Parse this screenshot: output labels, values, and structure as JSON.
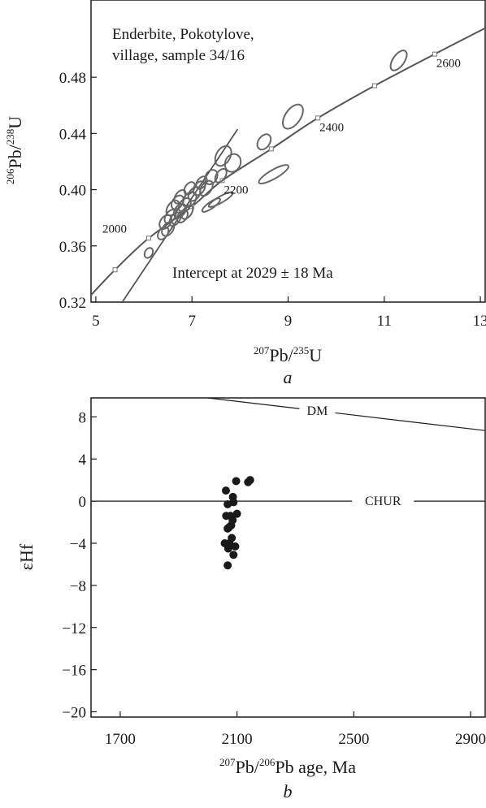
{
  "chart_data": [
    {
      "type": "scatter",
      "panel_label": "a",
      "annotation_lines": [
        "Enderbite, Pokotylove,",
        "village, sample 34/16"
      ],
      "intercept_text": "Intercept at 2029 ± 18 Ma",
      "xlabel": {
        "sup": "207",
        "base": "Pb/",
        "sup2": "235",
        "base2": "U"
      },
      "ylabel": {
        "sup": "206",
        "base": "Pb/",
        "sup2": "238",
        "base2": "U"
      },
      "xlim": [
        4.9,
        13.1
      ],
      "ylim": [
        0.32,
        0.535
      ],
      "xticks": [
        5,
        7,
        9,
        11,
        13
      ],
      "xtick_labels": [
        "5",
        "7",
        "9",
        "11",
        "13"
      ],
      "yticks": [
        0.32,
        0.36,
        0.4,
        0.44,
        0.48
      ],
      "ytick_labels": [
        "0.32",
        "0.36",
        "0.40",
        "0.44",
        "0.48"
      ],
      "concordia_age_labels": [
        {
          "age": "2000",
          "x": 6.1,
          "y": 0.3655
        },
        {
          "age": "2200",
          "x": 7.63,
          "y": 0.4065
        },
        {
          "age": "2400",
          "x": 9.62,
          "y": 0.451
        },
        {
          "age": "2600",
          "x": 12.05,
          "y": 0.4965
        }
      ],
      "concordia_markers": [
        {
          "x": 5.4,
          "y": 0.343
        },
        {
          "x": 6.1,
          "y": 0.3655
        },
        {
          "x": 7.0,
          "y": 0.388
        },
        {
          "x": 7.63,
          "y": 0.4065
        },
        {
          "x": 8.65,
          "y": 0.429
        },
        {
          "x": 9.62,
          "y": 0.451
        },
        {
          "x": 10.8,
          "y": 0.474
        },
        {
          "x": 12.05,
          "y": 0.4965
        }
      ],
      "concordia_curve": [
        {
          "x": 4.9,
          "y": 0.325
        },
        {
          "x": 5.4,
          "y": 0.343
        },
        {
          "x": 6.1,
          "y": 0.3655
        },
        {
          "x": 7.0,
          "y": 0.388
        },
        {
          "x": 7.63,
          "y": 0.4065
        },
        {
          "x": 8.65,
          "y": 0.429
        },
        {
          "x": 9.62,
          "y": 0.451
        },
        {
          "x": 10.8,
          "y": 0.474
        },
        {
          "x": 12.05,
          "y": 0.4965
        },
        {
          "x": 13.1,
          "y": 0.515
        }
      ],
      "discordia_line": [
        {
          "x": 5.55,
          "y": 0.32
        },
        {
          "x": 7.95,
          "y": 0.443
        }
      ],
      "ellipses": [
        {
          "x": 11.3,
          "y": 0.492,
          "rx": 0.15,
          "ry": 0.0045,
          "angle": -55
        },
        {
          "x": 9.1,
          "y": 0.452,
          "rx": 0.18,
          "ry": 0.006,
          "angle": -55
        },
        {
          "x": 8.5,
          "y": 0.434,
          "rx": 0.11,
          "ry": 0.0045,
          "angle": -55
        },
        {
          "x": 8.7,
          "y": 0.411,
          "rx": 0.22,
          "ry": 0.0035,
          "angle": -30
        },
        {
          "x": 7.65,
          "y": 0.424,
          "rx": 0.14,
          "ry": 0.0055,
          "angle": -60
        },
        {
          "x": 7.85,
          "y": 0.419,
          "rx": 0.12,
          "ry": 0.006,
          "angle": -65
        },
        {
          "x": 7.6,
          "y": 0.41,
          "rx": 0.1,
          "ry": 0.0035,
          "angle": -55
        },
        {
          "x": 7.4,
          "y": 0.409,
          "rx": 0.1,
          "ry": 0.0045,
          "angle": -60
        },
        {
          "x": 7.3,
          "y": 0.401,
          "rx": 0.11,
          "ry": 0.004,
          "angle": -55
        },
        {
          "x": 7.6,
          "y": 0.393,
          "rx": 0.18,
          "ry": 0.0025,
          "angle": -30
        },
        {
          "x": 7.4,
          "y": 0.389,
          "rx": 0.14,
          "ry": 0.0025,
          "angle": -35
        },
        {
          "x": 7.15,
          "y": 0.401,
          "rx": 0.1,
          "ry": 0.004,
          "angle": -55
        },
        {
          "x": 7.05,
          "y": 0.397,
          "rx": 0.1,
          "ry": 0.004,
          "angle": -55
        },
        {
          "x": 6.95,
          "y": 0.393,
          "rx": 0.11,
          "ry": 0.0045,
          "angle": -55
        },
        {
          "x": 6.85,
          "y": 0.389,
          "rx": 0.1,
          "ry": 0.004,
          "angle": -55
        },
        {
          "x": 6.75,
          "y": 0.385,
          "rx": 0.1,
          "ry": 0.004,
          "angle": -55
        },
        {
          "x": 6.7,
          "y": 0.391,
          "rx": 0.1,
          "ry": 0.004,
          "angle": -55
        },
        {
          "x": 6.6,
          "y": 0.387,
          "rx": 0.11,
          "ry": 0.004,
          "angle": -55
        },
        {
          "x": 6.55,
          "y": 0.381,
          "rx": 0.1,
          "ry": 0.0035,
          "angle": -55
        },
        {
          "x": 6.45,
          "y": 0.377,
          "rx": 0.1,
          "ry": 0.004,
          "angle": -55
        },
        {
          "x": 6.65,
          "y": 0.379,
          "rx": 0.1,
          "ry": 0.0035,
          "angle": -55
        },
        {
          "x": 6.8,
          "y": 0.381,
          "rx": 0.09,
          "ry": 0.0035,
          "angle": -55
        },
        {
          "x": 6.9,
          "y": 0.384,
          "rx": 0.1,
          "ry": 0.0035,
          "angle": -55
        },
        {
          "x": 6.5,
          "y": 0.372,
          "rx": 0.1,
          "ry": 0.004,
          "angle": -55
        },
        {
          "x": 6.4,
          "y": 0.369,
          "rx": 0.09,
          "ry": 0.0035,
          "angle": -55
        },
        {
          "x": 6.1,
          "y": 0.355,
          "rx": 0.07,
          "ry": 0.003,
          "angle": -60
        },
        {
          "x": 6.75,
          "y": 0.395,
          "rx": 0.1,
          "ry": 0.0035,
          "angle": -55
        },
        {
          "x": 6.95,
          "y": 0.401,
          "rx": 0.09,
          "ry": 0.0035,
          "angle": -55
        },
        {
          "x": 7.2,
          "y": 0.405,
          "rx": 0.09,
          "ry": 0.0035,
          "angle": -55
        }
      ]
    },
    {
      "type": "scatter",
      "panel_label": "b",
      "xlabel": {
        "sup": "207",
        "base": "Pb/",
        "sup2": "206",
        "base2": "Pb age, Ma"
      },
      "ylabel": "εHf",
      "xlim": [
        1600,
        2950
      ],
      "ylim": [
        -20.5,
        9.8
      ],
      "xticks": [
        1700,
        2100,
        2500,
        2900
      ],
      "xtick_labels": [
        "1700",
        "2100",
        "2500",
        "2900"
      ],
      "yticks": [
        8,
        4,
        0,
        -4,
        -8,
        -12,
        -16,
        -20
      ],
      "ytick_labels": [
        "8",
        "4",
        "0",
        "−4",
        "−8",
        "−12",
        "−16",
        "−20"
      ],
      "reference_lines": [
        {
          "name": "DM",
          "points": [
            {
              "x": 2000,
              "y": 9.8
            },
            {
              "x": 2950,
              "y": 6.7
            }
          ],
          "label_x": 2375
        },
        {
          "name": "CHUR",
          "points": [
            {
              "x": 1600,
              "y": 0
            },
            {
              "x": 2950,
              "y": 0
            }
          ],
          "label_x": 2600
        }
      ],
      "points": [
        {
          "x": 2062,
          "y": 1.0
        },
        {
          "x": 2068,
          "y": -0.3
        },
        {
          "x": 2063,
          "y": -1.4
        },
        {
          "x": 2058,
          "y": -4.0
        },
        {
          "x": 2068,
          "y": -2.6
        },
        {
          "x": 2072,
          "y": -2.5
        },
        {
          "x": 2070,
          "y": -4.5
        },
        {
          "x": 2068,
          "y": -6.1
        },
        {
          "x": 2074,
          "y": -4.0
        },
        {
          "x": 2078,
          "y": -1.4
        },
        {
          "x": 2080,
          "y": -2.3
        },
        {
          "x": 2082,
          "y": -3.5
        },
        {
          "x": 2085,
          "y": -1.8
        },
        {
          "x": 2086,
          "y": 0.4
        },
        {
          "x": 2088,
          "y": -0.1
        },
        {
          "x": 2088,
          "y": -5.1
        },
        {
          "x": 2094,
          "y": -4.3
        },
        {
          "x": 2097,
          "y": 1.9
        },
        {
          "x": 2100,
          "y": -1.2
        },
        {
          "x": 2138,
          "y": 1.8
        },
        {
          "x": 2145,
          "y": 2.0
        }
      ]
    }
  ]
}
